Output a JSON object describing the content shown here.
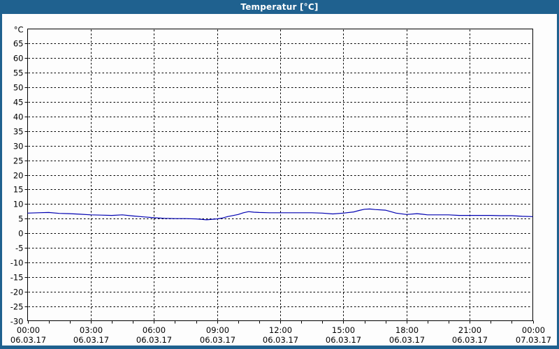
{
  "window": {
    "title": "Temperatur [°C]",
    "frame_color": "#1f618f",
    "background_color": "#fdfdfd"
  },
  "chart_data": {
    "type": "line",
    "title": "Temperatur [°C]",
    "grid": "dashed-black",
    "legend": "none",
    "line_color": "#0000b2",
    "axis_color": "#000000",
    "label_color": "#000000",
    "y_axis": {
      "unit_label": "°C",
      "min": -30,
      "max": 70,
      "step": 5,
      "tick_labels": [
        "°C",
        "65",
        "60",
        "55",
        "50",
        "45",
        "40",
        "35",
        "30",
        "25",
        "20",
        "15",
        "10",
        "5",
        "0",
        "-5",
        "-10",
        "-15",
        "-20",
        "-25",
        "-30"
      ]
    },
    "x_axis": {
      "span_hours": 24,
      "minor_tick_step_hours": 1,
      "major_ticks": [
        {
          "hour": 0,
          "time": "00:00",
          "date": "06.03.17"
        },
        {
          "hour": 3,
          "time": "03:00",
          "date": "06.03.17"
        },
        {
          "hour": 6,
          "time": "06:00",
          "date": "06.03.17"
        },
        {
          "hour": 9,
          "time": "09:00",
          "date": "06.03.17"
        },
        {
          "hour": 12,
          "time": "12:00",
          "date": "06.03.17"
        },
        {
          "hour": 15,
          "time": "15:00",
          "date": "06.03.17"
        },
        {
          "hour": 18,
          "time": "18:00",
          "date": "06.03.17"
        },
        {
          "hour": 21,
          "time": "21:00",
          "date": "06.03.17"
        },
        {
          "hour": 24,
          "time": "00:00",
          "date": "07.03.17"
        }
      ]
    },
    "series": [
      {
        "name": "Temperatur",
        "x_hours": [
          0,
          0.5,
          1,
          1.5,
          2,
          2.5,
          3,
          3.5,
          4,
          4.5,
          5,
          5.5,
          6,
          6.5,
          7,
          7.5,
          8,
          8.5,
          9,
          9.25,
          9.5,
          10,
          10.25,
          10.5,
          10.75,
          11,
          11.5,
          12,
          12.5,
          13,
          13.5,
          14,
          14.5,
          15,
          15.5,
          15.75,
          16,
          16.25,
          16.5,
          17,
          17.25,
          17.5,
          18,
          18.5,
          18.75,
          19,
          19.5,
          20,
          20.5,
          21,
          21.5,
          22,
          22.5,
          23,
          23.5,
          24
        ],
        "values": [
          6.9,
          7.0,
          7.1,
          6.8,
          6.7,
          6.5,
          6.3,
          6.2,
          6.1,
          6.3,
          5.9,
          5.6,
          5.3,
          5.1,
          5.0,
          5.0,
          4.9,
          4.6,
          4.9,
          5.2,
          5.7,
          6.4,
          7.0,
          7.4,
          7.2,
          7.1,
          7.0,
          7.0,
          7.0,
          7.0,
          7.0,
          6.9,
          6.6,
          6.9,
          7.3,
          7.8,
          8.2,
          8.3,
          8.1,
          7.9,
          7.4,
          6.9,
          6.4,
          6.7,
          6.5,
          6.3,
          6.3,
          6.3,
          6.1,
          6.1,
          6.1,
          6.1,
          6.0,
          6.0,
          5.8,
          5.7
        ]
      }
    ]
  }
}
